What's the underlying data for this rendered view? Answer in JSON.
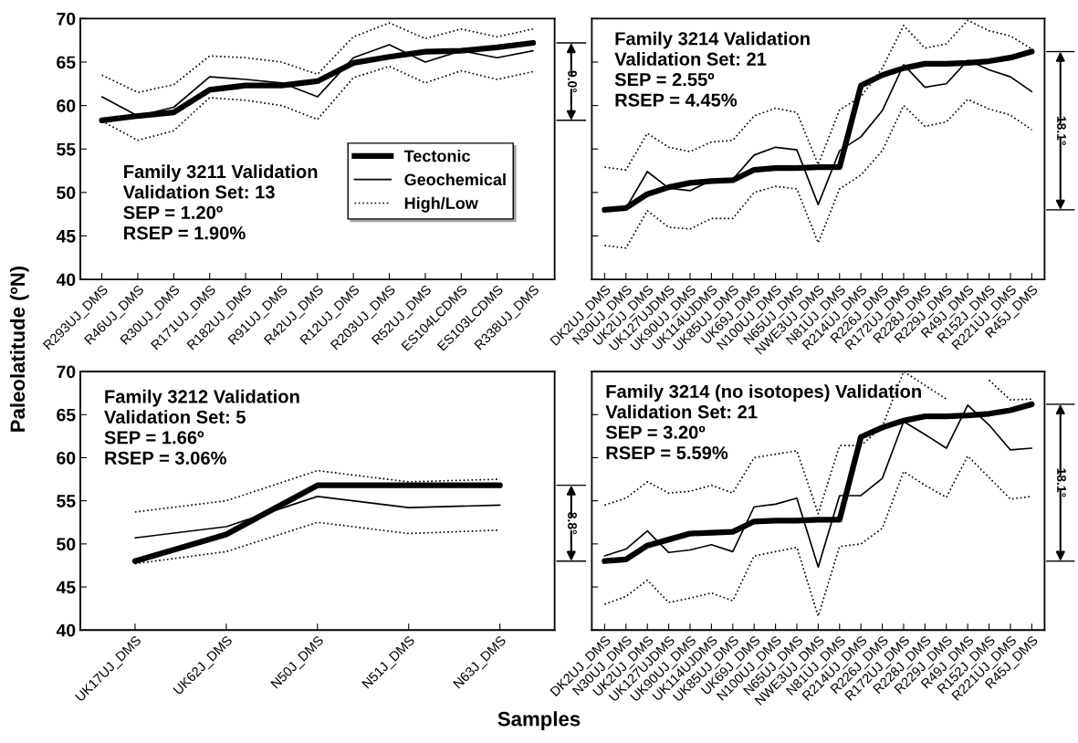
{
  "chart_data": [
    {
      "type": "line",
      "title": "Family 3211 Validation",
      "annotations": [
        "Validation Set: 13",
        "SEP = 1.20º",
        "RSEP = 1.90%",
        "9.0°"
      ],
      "ylabel": "Paleolatitude (ºN)",
      "categories": [
        "R293UJ_DMS",
        "R46UJ_DMS",
        "R30UJ_DMS",
        "R171UJ_DMS",
        "R182UJ_DMS",
        "R91UJ_DMS",
        "R42UJ_DMS",
        "R12UJ_DMS",
        "R203UJ_DMS",
        "R52UJ_DMS",
        "ES104LCDMS",
        "ES103LCDMS",
        "R338UJ_DMS"
      ],
      "series": [
        {
          "name": "Tectonic",
          "color": "#000000",
          "line_style": "solid",
          "values": [
            58.3,
            58.8,
            59.2,
            61.8,
            62.3,
            62.3,
            62.8,
            64.9,
            65.6,
            66.2,
            66.3,
            66.7,
            67.2
          ]
        },
        {
          "name": "Geochemical",
          "color": "#000000",
          "line_style": "solid",
          "values": [
            61.0,
            58.8,
            59.8,
            63.3,
            63.0,
            62.6,
            61.0,
            65.5,
            67.0,
            65.0,
            66.3,
            65.5,
            66.3
          ]
        },
        {
          "name": "High/Low",
          "color": "#000000",
          "line_style": "dotted",
          "values": [
            63.5,
            61.5,
            62.4,
            65.7,
            65.5,
            65.0,
            63.6,
            67.9,
            69.5,
            67.7,
            68.8,
            67.9,
            68.8
          ]
        },
        {
          "color": "#000000",
          "line_style": "dotted",
          "values": [
            58.2,
            56.0,
            57.1,
            60.9,
            60.6,
            60.0,
            58.4,
            63.2,
            64.5,
            62.6,
            64.0,
            63.0,
            63.9
          ]
        }
      ],
      "ylim": [
        40,
        70
      ],
      "yticks": [
        40,
        45,
        50,
        55,
        60,
        65,
        70
      ],
      "legend": "lower right",
      "grid": false,
      "marker": "none"
    },
    {
      "type": "line",
      "title": "Family 3214 Validation",
      "annotations": [
        "Validation Set: 21",
        "SEP = 2.55º",
        "RSEP = 4.45%",
        "18.1°"
      ],
      "categories": [
        "DK2UJ_DMS",
        "N30UJ_DMS",
        "UK2UJ_DMS",
        "UK127UJDMS",
        "UK90UJ_DMS",
        "UK114UJDMS",
        "UK85UJ_DMS",
        "UK69J_DMS",
        "N100UJ_DMS",
        "N65UJ_DMS",
        "NWE3UJ_DMS",
        "N81UJ_DMS",
        "R214UJ_DMS",
        "R226J_DMS",
        "R172UJ_DMS",
        "R228J_DMS",
        "R229J_DMS",
        "R49J_DMS",
        "R152J_DMS",
        "R221UJ_DMS",
        "R45J_DMS"
      ],
      "series": [
        {
          "color": "#000000",
          "line_style": "solid",
          "values": [
            48.0,
            48.2,
            49.8,
            50.6,
            51.1,
            51.3,
            51.4,
            52.6,
            52.8,
            52.8,
            52.9,
            52.9,
            62.3,
            63.5,
            64.3,
            64.8,
            64.8,
            64.9,
            65.1,
            65.5,
            66.2
          ]
        },
        {
          "color": "#000000",
          "line_style": "solid",
          "values": [
            48.2,
            48.2,
            52.4,
            50.5,
            50.2,
            51.4,
            51.5,
            54.3,
            55.2,
            54.9,
            48.6,
            54.8,
            56.4,
            59.4,
            64.7,
            62.1,
            62.5,
            65.2,
            64.1,
            63.3,
            61.6
          ]
        },
        {
          "color": "#000000",
          "line_style": "dotted",
          "values": [
            52.9,
            52.6,
            56.8,
            55.2,
            54.7,
            55.8,
            56.0,
            58.8,
            59.7,
            59.2,
            53.2,
            59.5,
            61.0,
            64.3,
            69.2,
            66.6,
            67.1,
            69.8,
            68.6,
            68.0,
            66.5
          ]
        },
        {
          "color": "#000000",
          "line_style": "dotted",
          "values": [
            43.9,
            43.6,
            47.9,
            46.0,
            45.8,
            47.0,
            47.0,
            50.0,
            50.7,
            50.4,
            44.2,
            50.4,
            52.0,
            54.8,
            60.0,
            57.6,
            58.1,
            60.7,
            59.6,
            58.9,
            57.2
          ]
        }
      ],
      "ylim": [
        40,
        70
      ],
      "yticks": [
        40,
        45,
        50,
        55,
        60,
        65,
        70
      ],
      "tick_labels": "x",
      "grid": false,
      "marker": "none"
    },
    {
      "type": "line",
      "title": "Family 3212 Validation",
      "annotations": [
        "Validation Set: 5",
        "SEP = 1.66º",
        "RSEP = 3.06%",
        "8.8°"
      ],
      "xlabel": "Samples",
      "categories": [
        "UK17UJ_DMS",
        "UK62J_DMS",
        "N50J_DMS",
        "N51J_DMS",
        "N63J_DMS"
      ],
      "series": [
        {
          "color": "#000000",
          "line_style": "solid",
          "values": [
            48.0,
            51.1,
            56.8,
            56.8,
            56.8
          ]
        },
        {
          "color": "#000000",
          "line_style": "solid",
          "values": [
            50.7,
            52.0,
            55.5,
            54.2,
            54.5
          ]
        },
        {
          "color": "#000000",
          "line_style": "dotted",
          "values": [
            53.7,
            55.0,
            58.5,
            57.2,
            57.5
          ]
        },
        {
          "color": "#000000",
          "line_style": "dotted",
          "values": [
            47.7,
            49.1,
            52.5,
            51.2,
            51.6
          ]
        }
      ],
      "ylim": [
        40,
        70
      ],
      "yticks": [
        40,
        45,
        50,
        55,
        60,
        65,
        70
      ],
      "grid": false,
      "marker": "none"
    },
    {
      "type": "line",
      "title": "Family 3214 (no isotopes) Validation",
      "annotations": [
        "Validation Set: 21",
        "SEP = 3.20º",
        "RSEP = 5.59%",
        "18.1°"
      ],
      "categories": [
        "DK2UJ_DMS",
        "N30UJ_DMS",
        "UK2UJ_DMS",
        "UK127UJDMS",
        "UK90UJ_DMS",
        "UK114UJDMS",
        "UK85UJ_DMS",
        "UK69J_DMS",
        "N100UJ_DMS",
        "N65UJ_DMS",
        "NWE3UJ_DMS",
        "N81UJ_DMS",
        "R214UJ_DMS",
        "R226J_DMS",
        "R172UJ_DMS",
        "R228J_DMS",
        "R229J_DMS",
        "R49J_DMS",
        "R152J_DMS",
        "R221UJ_DMS",
        "R45J_DMS"
      ],
      "series": [
        {
          "color": "#000000",
          "line_style": "solid",
          "values": [
            48.0,
            48.2,
            49.8,
            50.5,
            51.2,
            51.3,
            51.4,
            52.6,
            52.7,
            52.7,
            52.8,
            52.8,
            62.4,
            63.5,
            64.3,
            64.8,
            64.8,
            64.9,
            65.1,
            65.5,
            66.2
          ]
        },
        {
          "color": "#000000",
          "line_style": "solid",
          "values": [
            48.6,
            49.4,
            51.5,
            49.0,
            49.3,
            49.9,
            49.1,
            54.3,
            54.6,
            55.3,
            47.3,
            55.6,
            55.6,
            57.6,
            64.2,
            62.7,
            61.1,
            66.1,
            63.8,
            60.9,
            61.1
          ]
        },
        {
          "color": "#000000",
          "line_style": "dotted",
          "values": [
            54.5,
            55.3,
            57.2,
            55.9,
            56.1,
            56.8,
            55.9,
            60.0,
            60.4,
            60.8,
            53.5,
            61.4,
            61.4,
            63.6,
            70.0,
            68.4,
            66.8,
            null,
            69.0,
            66.7,
            66.8
          ]
        },
        {
          "color": "#000000",
          "line_style": "dotted",
          "values": [
            43.0,
            43.9,
            45.8,
            43.2,
            43.7,
            44.3,
            43.4,
            48.6,
            49.1,
            49.6,
            41.6,
            49.7,
            50.0,
            51.8,
            58.4,
            56.8,
            55.4,
            60.2,
            57.7,
            55.2,
            55.5
          ]
        }
      ],
      "ylim": [
        40,
        70
      ],
      "yticks": [
        40,
        45,
        50,
        55,
        60,
        65,
        70
      ],
      "tick_labels": "x",
      "grid": false,
      "marker": "none"
    }
  ]
}
